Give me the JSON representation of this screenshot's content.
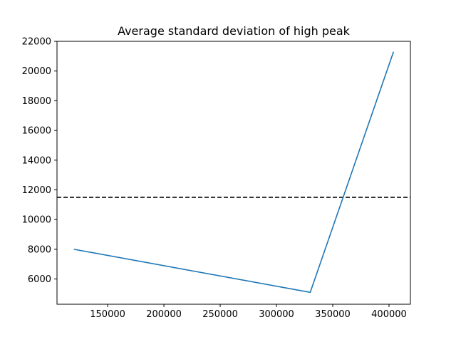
{
  "chart_data": {
    "type": "line",
    "title": "Average standard deviation of high peak",
    "xlabel": "",
    "ylabel": "",
    "xlim": [
      105000,
      419000
    ],
    "ylim": [
      4300,
      22000
    ],
    "x_ticks": [
      150000,
      200000,
      250000,
      300000,
      350000,
      400000
    ],
    "x_tick_labels": [
      "150000",
      "200000",
      "250000",
      "300000",
      "350000",
      "400000"
    ],
    "y_ticks": [
      6000,
      8000,
      10000,
      12000,
      14000,
      16000,
      18000,
      20000,
      22000
    ],
    "y_tick_labels": [
      "6000",
      "8000",
      "10000",
      "12000",
      "14000",
      "16000",
      "18000",
      "20000",
      "22000"
    ],
    "grid": false,
    "series": [
      {
        "color": "#1f77b4",
        "x": [
          120000,
          330000,
          404000
        ],
        "y": [
          8000,
          5100,
          21300
        ]
      }
    ],
    "reference_line": {
      "y": 11500,
      "color": "#000000",
      "style": "dashed"
    }
  }
}
